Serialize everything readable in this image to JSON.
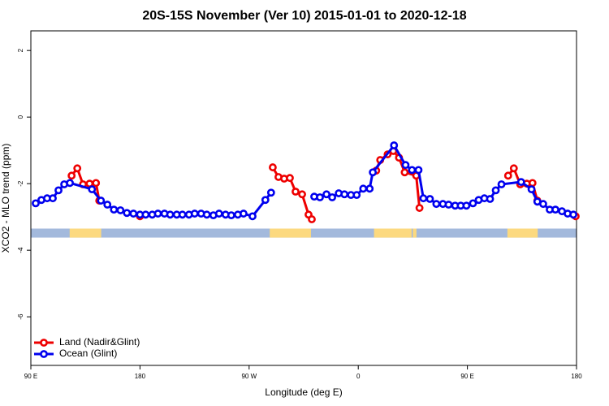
{
  "chart_data": {
    "type": "line",
    "title": "20S-15S November (Ver 10)   2015-01-01 to 2020-12-18",
    "x_label": "Longitude (deg E)",
    "y_label": "XCO2 - MLO trend (ppm)",
    "xlim": [
      90,
      540
    ],
    "ylim": [
      -7.46,
      2.59
    ],
    "xticks": [
      {
        "value": 90,
        "label": "90 E"
      },
      {
        "value": 180,
        "label": "180"
      },
      {
        "value": 270,
        "label": "90 W"
      },
      {
        "value": 360,
        "label": "0"
      },
      {
        "value": 450,
        "label": "90 E"
      },
      {
        "value": 540,
        "label": "180"
      }
    ],
    "yticks": [
      2,
      0,
      -2,
      -4,
      -6
    ],
    "legend": "bottom-left",
    "land_ranges": [
      [
        122,
        148
      ],
      [
        287,
        321
      ],
      [
        373,
        404
      ],
      [
        405,
        408
      ],
      [
        483,
        508
      ]
    ],
    "land_color": "#fcd97f",
    "ocean_color": "#a3b9dc",
    "series": [
      {
        "name": "Land (Nadir&Glint)",
        "color": "#ee0000",
        "x": [
          123.6,
          128.3,
          133,
          138.4,
          143.7,
          146.4,
          null,
          180,
          null,
          289.5,
          294.2,
          298.9,
          303.6,
          308.3,
          313.7,
          319,
          321.7,
          null,
          374.8,
          378.1,
          384.2,
          388.9,
          393.6,
          398.3,
          407.8,
          410.5,
          null,
          483.6,
          488.3,
          493.6,
          499,
          503.7,
          507.7,
          null,
          539.3
        ],
        "values": [
          -1.76,
          -1.54,
          -2.02,
          -2.0,
          -1.98,
          -2.51,
          null,
          -2.98,
          null,
          -1.51,
          -1.8,
          -1.85,
          -1.83,
          -2.24,
          -2.32,
          -2.93,
          -3.07,
          null,
          -1.61,
          -1.29,
          -1.12,
          -1.02,
          -1.22,
          -1.66,
          -1.76,
          -2.73,
          null,
          -1.76,
          -1.54,
          -2.02,
          -2.0,
          -1.98,
          -2.51,
          null,
          -2.98
        ]
      },
      {
        "name": "Ocean (Glint)",
        "color": "#0000ee",
        "x": [
          94,
          98.7,
          103.4,
          108.1,
          112.8,
          117.5,
          122.2,
          140.4,
          147.8,
          153.1,
          158.5,
          163.9,
          169.2,
          174.6,
          180,
          184.7,
          190.1,
          194.8,
          200.2,
          204.9,
          210.3,
          215,
          220.4,
          225.1,
          230.4,
          235.1,
          240.5,
          245.2,
          250.6,
          255.3,
          260.7,
          265.4,
          272.8,
          283.4,
          288.1,
          null,
          323.7,
          328.4,
          333.8,
          338.5,
          343.9,
          348.6,
          354,
          358.7,
          364.1,
          369.4,
          372,
          389.5,
          399,
          404.3,
          409.7,
          413.7,
          419.1,
          424.4,
          429.8,
          434.5,
          439.9,
          444.5,
          449.2,
          454.6,
          459.3,
          464,
          468.7,
          473.4,
          478.1,
          494.3,
          502.9,
          507.7,
          512.5,
          517.9,
          522.6,
          528,
          532.7,
          537.4
        ],
        "values": [
          -2.59,
          -2.49,
          -2.44,
          -2.44,
          -2.2,
          -2.02,
          -1.98,
          -2.17,
          -2.51,
          -2.63,
          -2.78,
          -2.8,
          -2.88,
          -2.9,
          -2.93,
          -2.93,
          -2.93,
          -2.9,
          -2.9,
          -2.93,
          -2.93,
          -2.93,
          -2.93,
          -2.9,
          -2.9,
          -2.93,
          -2.95,
          -2.9,
          -2.93,
          -2.95,
          -2.93,
          -2.9,
          -2.98,
          -2.49,
          -2.27,
          null,
          -2.39,
          -2.41,
          -2.32,
          -2.41,
          -2.29,
          -2.32,
          -2.34,
          -2.34,
          -2.15,
          -2.15,
          -1.66,
          -0.85,
          -1.44,
          -1.59,
          -1.59,
          -2.44,
          -2.46,
          -2.61,
          -2.61,
          -2.63,
          -2.66,
          -2.66,
          -2.66,
          -2.59,
          -2.49,
          -2.44,
          -2.46,
          -2.2,
          -2.02,
          -1.95,
          -2.17,
          -2.54,
          -2.61,
          -2.78,
          -2.78,
          -2.83,
          -2.9,
          -2.93
        ]
      }
    ]
  }
}
